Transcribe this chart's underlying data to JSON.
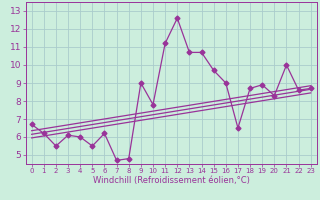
{
  "x": [
    0,
    1,
    2,
    3,
    4,
    5,
    6,
    7,
    8,
    9,
    10,
    11,
    12,
    13,
    14,
    15,
    16,
    17,
    18,
    19,
    20,
    21,
    22,
    23
  ],
  "y": [
    6.7,
    6.2,
    5.5,
    6.1,
    6.0,
    5.5,
    6.2,
    4.7,
    4.8,
    9.0,
    7.8,
    11.2,
    12.6,
    10.7,
    10.7,
    9.7,
    9.0,
    6.5,
    8.7,
    8.9,
    8.3,
    10.0,
    8.6,
    8.7
  ],
  "trend1_ends": [
    6.35,
    8.85
  ],
  "trend2_ends": [
    6.15,
    8.65
  ],
  "trend3_ends": [
    5.95,
    8.45
  ],
  "trend_x": [
    0,
    23
  ],
  "line_color": "#993399",
  "bg_color": "#cceedd",
  "grid_color": "#aacccc",
  "xlabel": "Windchill (Refroidissement éolien,°C)",
  "xlim": [
    -0.5,
    23.5
  ],
  "ylim": [
    4.5,
    13.5
  ],
  "yticks": [
    5,
    6,
    7,
    8,
    9,
    10,
    11,
    12,
    13
  ],
  "xticks": [
    0,
    1,
    2,
    3,
    4,
    5,
    6,
    7,
    8,
    9,
    10,
    11,
    12,
    13,
    14,
    15,
    16,
    17,
    18,
    19,
    20,
    21,
    22,
    23
  ],
  "font_size": 6.5,
  "marker_size": 2.5,
  "line_width": 0.9
}
